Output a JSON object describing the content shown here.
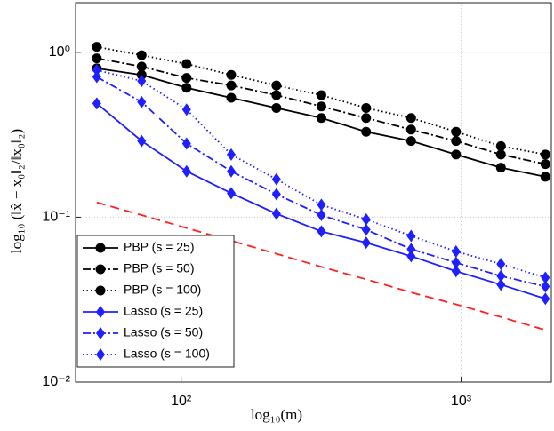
{
  "chart_data": {
    "type": "line",
    "x_label": "log₁₀(m)",
    "y_label": "log₁₀ (‖x̂ − x₀‖₂/‖x₀‖₂)",
    "x": [
      50,
      72.3,
      104.6,
      151,
      219,
      317,
      458,
      663,
      959,
      1387,
      2000
    ],
    "xlim": [
      42,
      2100
    ],
    "ylim": [
      0.01,
      2
    ],
    "xscale": "log",
    "yscale": "log",
    "grid": true,
    "legend": "lower left",
    "xticks": [
      {
        "value": 100,
        "label": "10²"
      },
      {
        "value": 1000,
        "label": "10³"
      }
    ],
    "yticks": [
      {
        "value": 0.01,
        "label": "10⁻²"
      },
      {
        "value": 0.1,
        "label": "10⁻¹"
      },
      {
        "value": 1,
        "label": "10⁰"
      }
    ],
    "series": [
      {
        "name": "PBP (s = 25)",
        "color": "#000000",
        "dash": "solid",
        "marker": "circle",
        "values": [
          0.8,
          0.73,
          0.61,
          0.53,
          0.46,
          0.4,
          0.33,
          0.29,
          0.24,
          0.2,
          0.176
        ]
      },
      {
        "name": "PBP (s = 50)",
        "color": "#000000",
        "dash": "dashdot",
        "marker": "circle",
        "values": [
          0.92,
          0.82,
          0.7,
          0.63,
          0.55,
          0.47,
          0.4,
          0.34,
          0.29,
          0.24,
          0.21
        ]
      },
      {
        "name": "PBP (s = 100)",
        "color": "#000000",
        "dash": "dotted",
        "marker": "circle",
        "values": [
          1.08,
          0.96,
          0.85,
          0.73,
          0.63,
          0.55,
          0.46,
          0.4,
          0.33,
          0.27,
          0.24
        ]
      },
      {
        "name": "Lasso (s = 25)",
        "color": "#1f1fff",
        "dash": "solid",
        "marker": "diamond",
        "values": [
          0.49,
          0.29,
          0.19,
          0.14,
          0.105,
          0.082,
          0.07,
          0.058,
          0.047,
          0.039,
          0.032
        ]
      },
      {
        "name": "Lasso (s = 50)",
        "color": "#1f1fff",
        "dash": "dashdot",
        "marker": "diamond",
        "values": [
          0.71,
          0.5,
          0.28,
          0.19,
          0.138,
          0.103,
          0.084,
          0.064,
          0.053,
          0.044,
          0.038
        ]
      },
      {
        "name": "Lasso (s = 100)",
        "color": "#1f1fff",
        "dash": "dotted",
        "marker": "diamond",
        "values": [
          0.78,
          0.67,
          0.45,
          0.24,
          0.17,
          0.119,
          0.097,
          0.077,
          0.062,
          0.052,
          0.043
        ]
      },
      {
        "color": "#ff2020",
        "dash": "dashed",
        "marker": "none",
        "values": [
          0.123,
          0.103,
          0.086,
          0.072,
          0.06,
          0.05,
          0.042,
          0.035,
          0.0296,
          0.0248,
          0.0207
        ]
      }
    ]
  }
}
